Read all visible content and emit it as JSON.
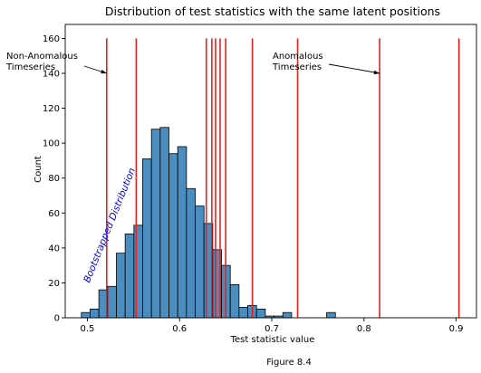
{
  "caption": "Figure 8.4",
  "chart_data": {
    "type": "bar",
    "title": "Distribution of test statistics with the same latent positions",
    "xlabel": "Test statistic value",
    "ylabel": "Count",
    "xlim": [
      0.476,
      0.922
    ],
    "ylim": [
      0,
      168
    ],
    "xticks": [
      0.5,
      0.6,
      0.7,
      0.8,
      0.9
    ],
    "xtick_labels": [
      "0.5",
      "0.6",
      "0.7",
      "0.8",
      "0.9"
    ],
    "yticks": [
      0,
      20,
      40,
      60,
      80,
      100,
      120,
      140,
      160
    ],
    "ytick_labels": [
      "0",
      "20",
      "40",
      "60",
      "80",
      "100",
      "120",
      "140",
      "160"
    ],
    "grid": false,
    "bar_color": "#4b8dbf",
    "bin_edges": [
      0.4935,
      0.503,
      0.5125,
      0.522,
      0.5315,
      0.541,
      0.5505,
      0.56,
      0.5695,
      0.579,
      0.5885,
      0.598,
      0.6075,
      0.617,
      0.6265,
      0.636,
      0.6455,
      0.655,
      0.6645,
      0.674,
      0.6835,
      0.693,
      0.7025,
      0.712,
      0.7215,
      0.731,
      0.7405,
      0.75,
      0.7595,
      0.769
    ],
    "counts": [
      3,
      5,
      16,
      18,
      37,
      48,
      53,
      91,
      108,
      109,
      94,
      98,
      74,
      64,
      54,
      39,
      30,
      19,
      6,
      7,
      5,
      1,
      1,
      3,
      0,
      0,
      0,
      0,
      3
    ],
    "vlines": {
      "color": "#e8221c",
      "x": [
        0.521,
        0.553,
        0.629,
        0.635,
        0.639,
        0.644,
        0.65,
        0.679,
        0.728,
        0.817,
        0.903
      ]
    },
    "annotations": [
      {
        "id": "non-anomalous",
        "text_lines": [
          "Non-Anomalous",
          "Timeseries"
        ],
        "arrow_to": [
          0.521,
          140
        ]
      },
      {
        "id": "anomalous",
        "text_lines": [
          "Anomalous",
          "Timeseries"
        ],
        "arrow_to": [
          0.817,
          140
        ]
      }
    ],
    "rotated_label": {
      "text": "Bootstrapped Distribution",
      "color": "#0000ff"
    }
  }
}
